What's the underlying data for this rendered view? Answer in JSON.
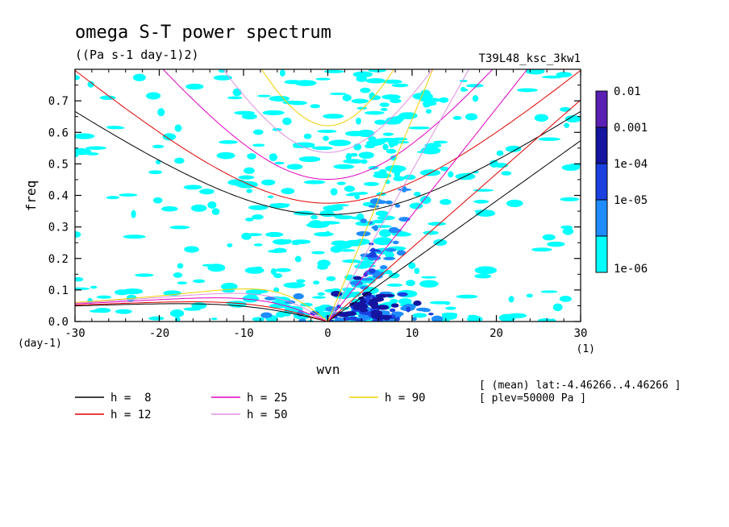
{
  "chart_data": {
    "type": "heatmap",
    "title": "omega S-T power spectrum",
    "units": "((Pa s-1 day-1)2)",
    "experiment": "T39L48_ksc_3kw1",
    "xlabel": "wvn",
    "ylabel": "freq",
    "x_unit": "(1)",
    "y_unit": "(day-1)",
    "xlim": [
      -30,
      30
    ],
    "ylim": [
      0,
      0.8
    ],
    "x_ticks": [
      -30,
      -20,
      -10,
      0,
      10,
      20,
      30
    ],
    "x_tick_labels": [
      "-30",
      "-20",
      "-10",
      "0",
      "10",
      "20",
      "30"
    ],
    "y_ticks": [
      0,
      0.1,
      0.2,
      0.3,
      0.4,
      0.5,
      0.6,
      0.7
    ],
    "y_tick_labels": [
      "0.0",
      "0.1",
      "0.2",
      "0.3",
      "0.4",
      "0.5",
      "0.6",
      "0.7"
    ],
    "colorbar": {
      "levels": [
        "0.01",
        "0.001",
        "1e-04",
        "1e-05",
        "1e-06"
      ],
      "colors": [
        "#5a1fb4",
        "#1414a0",
        "#1a40e0",
        "#1e8cff",
        "#00ffff"
      ]
    },
    "dispersion_curves": [
      {
        "label": "h =  8",
        "h": 8,
        "color": "#000000"
      },
      {
        "label": "h = 12",
        "h": 12,
        "color": "#e00000"
      },
      {
        "label": "h = 25",
        "h": 25,
        "color": "#e000c0"
      },
      {
        "label": "h = 50",
        "h": 50,
        "color": "#e090e0"
      },
      {
        "label": "h = 90",
        "h": 90,
        "color": "#f0d000"
      }
    ],
    "annotations": [
      "[ (mean) lat:-4.46266..4.46266 ]",
      "[ plev=50000 Pa ]"
    ]
  }
}
